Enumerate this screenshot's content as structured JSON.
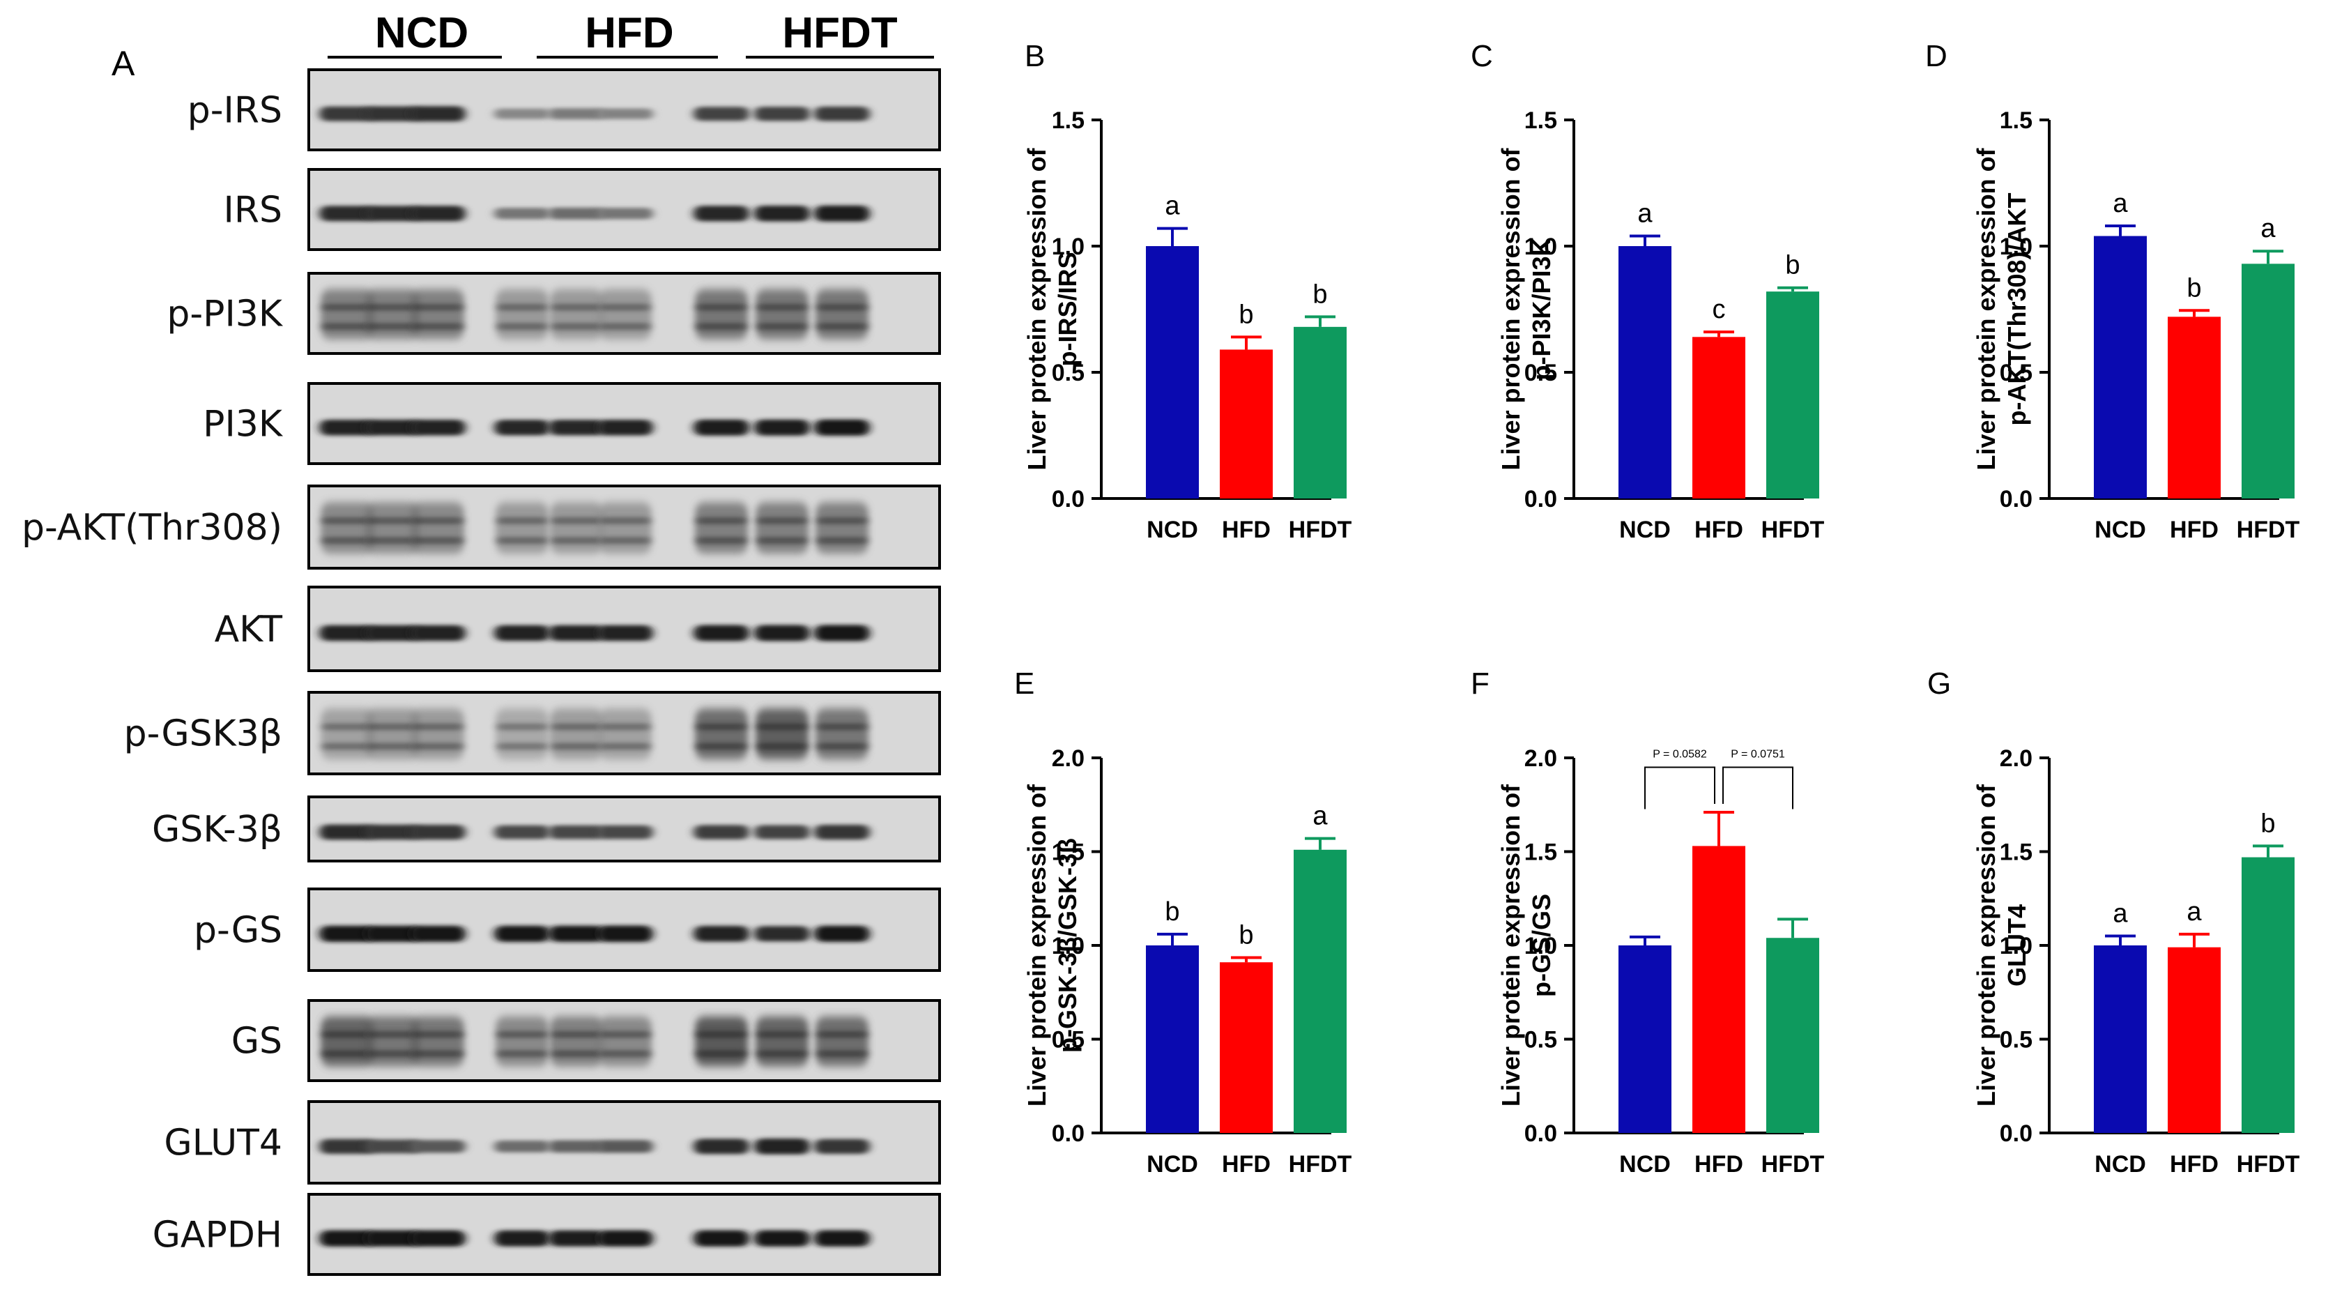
{
  "panel_a": {
    "letter": "A",
    "groups": [
      "NCD",
      "HFD",
      "HFDT"
    ],
    "blots": [
      {
        "label": "p-IRS",
        "signal": [
          0.78,
          0.82,
          0.86,
          0.35,
          0.42,
          0.38,
          0.72,
          0.74,
          0.76
        ],
        "style": "band"
      },
      {
        "label": "IRS",
        "signal": [
          0.85,
          0.86,
          0.88,
          0.45,
          0.5,
          0.45,
          0.88,
          0.9,
          0.92
        ],
        "style": "band"
      },
      {
        "label": "p-PI3K",
        "signal": [
          0.55,
          0.55,
          0.55,
          0.4,
          0.4,
          0.4,
          0.6,
          0.6,
          0.6
        ],
        "style": "smear"
      },
      {
        "label": "PI3K",
        "signal": [
          0.9,
          0.9,
          0.9,
          0.88,
          0.88,
          0.9,
          0.92,
          0.92,
          0.95
        ],
        "style": "band"
      },
      {
        "label": "p-AKT(Thr308)",
        "signal": [
          0.5,
          0.5,
          0.5,
          0.4,
          0.4,
          0.4,
          0.55,
          0.55,
          0.55
        ],
        "style": "smear"
      },
      {
        "label": "AKT",
        "signal": [
          0.9,
          0.9,
          0.9,
          0.9,
          0.9,
          0.9,
          0.92,
          0.92,
          0.95
        ],
        "style": "band"
      },
      {
        "label": "p-GSK3β",
        "signal": [
          0.35,
          0.4,
          0.4,
          0.3,
          0.38,
          0.35,
          0.65,
          0.72,
          0.6
        ],
        "style": "smear"
      },
      {
        "label": "GSK-3β",
        "signal": [
          0.85,
          0.82,
          0.8,
          0.7,
          0.7,
          0.7,
          0.75,
          0.72,
          0.8
        ],
        "style": "band"
      },
      {
        "label": "p-GS",
        "signal": [
          0.95,
          0.95,
          0.95,
          0.95,
          0.95,
          0.97,
          0.9,
          0.85,
          0.95
        ],
        "style": "band"
      },
      {
        "label": "GS",
        "signal": [
          0.7,
          0.6,
          0.6,
          0.5,
          0.55,
          0.5,
          0.75,
          0.7,
          0.65
        ],
        "style": "smear"
      },
      {
        "label": "GLUT4",
        "signal": [
          0.8,
          0.7,
          0.6,
          0.5,
          0.55,
          0.6,
          0.85,
          0.9,
          0.8
        ],
        "style": "band"
      },
      {
        "label": "GAPDH",
        "signal": [
          0.95,
          0.95,
          0.95,
          0.92,
          0.92,
          0.95,
          0.95,
          0.95,
          0.95
        ],
        "style": "band"
      }
    ]
  },
  "chart_data": [
    {
      "panel": "B",
      "type": "bar",
      "categories": [
        "NCD",
        "HFD",
        "HFDT"
      ],
      "values": [
        1.0,
        0.59,
        0.68
      ],
      "errors": [
        0.07,
        0.05,
        0.04
      ],
      "letters": [
        "a",
        "b",
        "b"
      ],
      "ylabel": [
        "Liver protein expression of",
        "p-IRS/IRS"
      ],
      "ylim": [
        0,
        1.5
      ],
      "yticks": [
        "0.0",
        "0.5",
        "1.0",
        "1.5"
      ],
      "colors": [
        "#0A0AB0",
        "#FF0000",
        "#0E9A5E"
      ]
    },
    {
      "panel": "C",
      "type": "bar",
      "categories": [
        "NCD",
        "HFD",
        "HFDT"
      ],
      "values": [
        1.0,
        0.64,
        0.82
      ],
      "errors": [
        0.04,
        0.02,
        0.015
      ],
      "letters": [
        "a",
        "c",
        "b"
      ],
      "ylabel": [
        "Liver protein expression of",
        "p-PI3K/PI3K"
      ],
      "ylim": [
        0,
        1.5
      ],
      "yticks": [
        "0.0",
        "0.5",
        "1.0",
        "1.5"
      ],
      "colors": [
        "#0A0AB0",
        "#FF0000",
        "#0E9A5E"
      ]
    },
    {
      "panel": "D",
      "type": "bar",
      "categories": [
        "NCD",
        "HFD",
        "HFDT"
      ],
      "values": [
        1.04,
        0.72,
        0.93
      ],
      "errors": [
        0.04,
        0.025,
        0.05
      ],
      "letters": [
        "a",
        "b",
        "a"
      ],
      "ylabel": [
        "Liver protein expression of",
        "p-AKT(Thr308)/AKT"
      ],
      "ylim": [
        0,
        1.5
      ],
      "yticks": [
        "0.0",
        "0.5",
        "1.0",
        "1.5"
      ],
      "colors": [
        "#0A0AB0",
        "#FF0000",
        "#0E9A5E"
      ]
    },
    {
      "panel": "E",
      "type": "bar",
      "categories": [
        "NCD",
        "HFD",
        "HFDT"
      ],
      "values": [
        1.0,
        0.91,
        1.51
      ],
      "errors": [
        0.06,
        0.025,
        0.06
      ],
      "letters": [
        "b",
        "b",
        "a"
      ],
      "ylabel": [
        "Liver protein expression of",
        "p-GSK-3β/GSK-3β"
      ],
      "ylim": [
        0,
        2.0
      ],
      "yticks": [
        "0.0",
        "0.5",
        "1.0",
        "1.5",
        "2.0"
      ],
      "colors": [
        "#0A0AB0",
        "#FF0000",
        "#0E9A5E"
      ]
    },
    {
      "panel": "F",
      "type": "bar",
      "categories": [
        "NCD",
        "HFD",
        "HFDT"
      ],
      "values": [
        1.0,
        1.53,
        1.04
      ],
      "errors": [
        0.045,
        0.18,
        0.1
      ],
      "letters": [
        "",
        "",
        ""
      ],
      "brackets": [
        {
          "from": 0,
          "to": 1,
          "text": "P = 0.0582",
          "y": 1.95
        },
        {
          "from": 1,
          "to": 2,
          "text": "P = 0.0751",
          "y": 1.95
        }
      ],
      "ylabel": [
        "Liver protein expression of",
        "p-GS/GS"
      ],
      "ylim": [
        0,
        2.0
      ],
      "yticks": [
        "0.0",
        "0.5",
        "1.0",
        "1.5",
        "2.0"
      ],
      "colors": [
        "#0A0AB0",
        "#FF0000",
        "#0E9A5E"
      ]
    },
    {
      "panel": "G",
      "type": "bar",
      "categories": [
        "NCD",
        "HFD",
        "HFDT"
      ],
      "values": [
        1.0,
        0.99,
        1.47
      ],
      "errors": [
        0.05,
        0.07,
        0.06
      ],
      "letters": [
        "a",
        "a",
        "b"
      ],
      "ylabel": [
        "Liver protein expression of",
        "GLUT4"
      ],
      "ylim": [
        0,
        2.0
      ],
      "yticks": [
        "0.0",
        "0.5",
        "1.0",
        "1.5",
        "2.0"
      ],
      "colors": [
        "#0A0AB0",
        "#FF0000",
        "#0E9A5E"
      ]
    }
  ]
}
